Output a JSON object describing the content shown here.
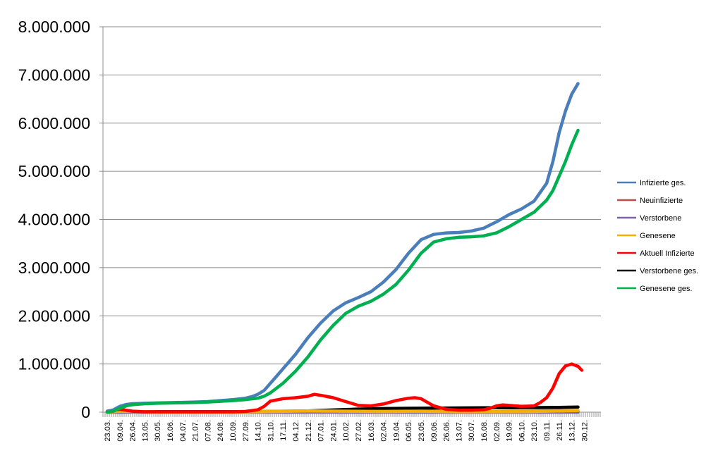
{
  "chart_data": {
    "type": "line",
    "title": "",
    "xlabel": "",
    "ylabel": "",
    "ylim": [
      0,
      8000000
    ],
    "y_ticks": [
      0,
      1000000,
      2000000,
      3000000,
      4000000,
      5000000,
      6000000,
      7000000,
      8000000
    ],
    "y_tick_labels": [
      "0",
      "1.000.000",
      "2.000.000",
      "3.000.000",
      "4.000.000",
      "5.000.000",
      "6.000.000",
      "7.000.000",
      "8.000.000"
    ],
    "grid": "horizontal",
    "legend_position": "right",
    "x_tick_labels": [
      "23.03.",
      "09.04.",
      "26.04.",
      "13.05.",
      "30.05.",
      "16.06.",
      "04.07.",
      "21.07.",
      "07.08.",
      "24.08.",
      "10.09.",
      "27.09.",
      "14.10.",
      "31.10.",
      "17.11.",
      "04.12.",
      "21.12.",
      "07.01.",
      "24.01.",
      "10.02.",
      "27.02.",
      "16.03.",
      "02.04.",
      "19.04.",
      "06.05.",
      "23.05.",
      "09.06.",
      "26.06.",
      "13.07.",
      "30.07.",
      "16.08.",
      "02.09.",
      "19.09.",
      "06.10.",
      "23.10.",
      "09.11.",
      "26.11.",
      "13.12.",
      "30.12."
    ],
    "x_range": [
      0,
      38.1
    ],
    "series": [
      {
        "name": "Infizierte ges.",
        "color": "#4a7ebb",
        "points": [
          [
            0,
            10000
          ],
          [
            0.5,
            50000
          ],
          [
            1,
            120000
          ],
          [
            1.5,
            160000
          ],
          [
            2,
            175000
          ],
          [
            3,
            185000
          ],
          [
            4,
            192000
          ],
          [
            5,
            198000
          ],
          [
            6,
            203000
          ],
          [
            7,
            210000
          ],
          [
            8,
            220000
          ],
          [
            9,
            240000
          ],
          [
            10,
            260000
          ],
          [
            11,
            290000
          ],
          [
            11.5,
            320000
          ],
          [
            12,
            370000
          ],
          [
            12.5,
            450000
          ],
          [
            13,
            600000
          ],
          [
            14,
            900000
          ],
          [
            15,
            1200000
          ],
          [
            16,
            1550000
          ],
          [
            17,
            1850000
          ],
          [
            18,
            2100000
          ],
          [
            19,
            2270000
          ],
          [
            20,
            2380000
          ],
          [
            21,
            2500000
          ],
          [
            22,
            2700000
          ],
          [
            23,
            2960000
          ],
          [
            24,
            3300000
          ],
          [
            25,
            3580000
          ],
          [
            26,
            3690000
          ],
          [
            27,
            3720000
          ],
          [
            28,
            3730000
          ],
          [
            29,
            3760000
          ],
          [
            30,
            3820000
          ],
          [
            31,
            3950000
          ],
          [
            32,
            4100000
          ],
          [
            33,
            4220000
          ],
          [
            34,
            4380000
          ],
          [
            35,
            4750000
          ],
          [
            35.5,
            5200000
          ],
          [
            36,
            5800000
          ],
          [
            36.5,
            6250000
          ],
          [
            37,
            6600000
          ],
          [
            37.5,
            6820000
          ]
        ]
      },
      {
        "name": "Neuinfizierte",
        "color": "#be4b48",
        "points": [
          [
            0,
            20000
          ],
          [
            0.5,
            45000
          ],
          [
            1,
            50000
          ],
          [
            1.5,
            30000
          ],
          [
            2,
            15000
          ],
          [
            4,
            5000
          ],
          [
            10,
            5000
          ],
          [
            12,
            15000
          ],
          [
            14,
            20000
          ],
          [
            16,
            25000
          ],
          [
            18,
            12000
          ],
          [
            20,
            8000
          ],
          [
            22,
            15000
          ],
          [
            24,
            20000
          ],
          [
            26,
            8000
          ],
          [
            28,
            5000
          ],
          [
            30,
            8000
          ],
          [
            32,
            15000
          ],
          [
            34,
            20000
          ],
          [
            36,
            30000
          ],
          [
            37.5,
            25000
          ]
        ]
      },
      {
        "name": "Verstorbene",
        "color": "#7d60a0",
        "points": [
          [
            0,
            0
          ],
          [
            10,
            0
          ],
          [
            14,
            500
          ],
          [
            17,
            1000
          ],
          [
            20,
            500
          ],
          [
            24,
            700
          ],
          [
            28,
            200
          ],
          [
            32,
            400
          ],
          [
            36,
            800
          ],
          [
            37.5,
            700
          ]
        ]
      },
      {
        "name": "Genesene",
        "color": "#f6b100",
        "points": [
          [
            0,
            0
          ],
          [
            1,
            20000
          ],
          [
            2,
            15000
          ],
          [
            4,
            5000
          ],
          [
            10,
            5000
          ],
          [
            13,
            15000
          ],
          [
            16,
            25000
          ],
          [
            19,
            20000
          ],
          [
            22,
            15000
          ],
          [
            25,
            20000
          ],
          [
            28,
            10000
          ],
          [
            31,
            10000
          ],
          [
            34,
            15000
          ],
          [
            37,
            30000
          ],
          [
            37.5,
            35000
          ]
        ]
      },
      {
        "name": "Aktuell Infizierte",
        "color": "#ff0000",
        "points": [
          [
            0,
            10000
          ],
          [
            0.5,
            40000
          ],
          [
            1,
            60000
          ],
          [
            2,
            20000
          ],
          [
            3,
            8000
          ],
          [
            10,
            8000
          ],
          [
            11,
            15000
          ],
          [
            12,
            50000
          ],
          [
            12.5,
            120000
          ],
          [
            13,
            230000
          ],
          [
            14,
            280000
          ],
          [
            15,
            300000
          ],
          [
            16,
            330000
          ],
          [
            16.5,
            370000
          ],
          [
            17,
            350000
          ],
          [
            18,
            300000
          ],
          [
            19,
            220000
          ],
          [
            20,
            140000
          ],
          [
            21,
            130000
          ],
          [
            22,
            170000
          ],
          [
            23,
            240000
          ],
          [
            24,
            290000
          ],
          [
            24.5,
            300000
          ],
          [
            25,
            280000
          ],
          [
            26,
            130000
          ],
          [
            27,
            60000
          ],
          [
            28,
            40000
          ],
          [
            29,
            40000
          ],
          [
            30,
            50000
          ],
          [
            30.5,
            80000
          ],
          [
            31,
            130000
          ],
          [
            31.5,
            150000
          ],
          [
            32,
            140000
          ],
          [
            33,
            120000
          ],
          [
            34,
            130000
          ],
          [
            34.5,
            200000
          ],
          [
            35,
            300000
          ],
          [
            35.5,
            500000
          ],
          [
            36,
            800000
          ],
          [
            36.5,
            960000
          ],
          [
            37,
            1000000
          ],
          [
            37.5,
            950000
          ],
          [
            37.8,
            870000
          ]
        ]
      },
      {
        "name": "Verstorbene ges.",
        "color": "#000000",
        "points": [
          [
            0,
            500
          ],
          [
            1,
            4000
          ],
          [
            2,
            7000
          ],
          [
            4,
            9000
          ],
          [
            10,
            9500
          ],
          [
            12,
            10000
          ],
          [
            14,
            12000
          ],
          [
            16,
            25000
          ],
          [
            18,
            45000
          ],
          [
            20,
            65000
          ],
          [
            22,
            75000
          ],
          [
            24,
            80000
          ],
          [
            26,
            85000
          ],
          [
            28,
            88000
          ],
          [
            30,
            90000
          ],
          [
            32,
            92000
          ],
          [
            34,
            95000
          ],
          [
            36,
            100000
          ],
          [
            37.5,
            105000
          ]
        ]
      },
      {
        "name": "Genesene ges.",
        "color": "#00b050",
        "points": [
          [
            0,
            0
          ],
          [
            0.5,
            20000
          ],
          [
            1,
            80000
          ],
          [
            1.5,
            130000
          ],
          [
            2,
            155000
          ],
          [
            3,
            175000
          ],
          [
            4,
            185000
          ],
          [
            5,
            190000
          ],
          [
            6,
            195000
          ],
          [
            7,
            200000
          ],
          [
            8,
            210000
          ],
          [
            9,
            225000
          ],
          [
            10,
            240000
          ],
          [
            11,
            260000
          ],
          [
            12,
            290000
          ],
          [
            12.5,
            330000
          ],
          [
            13,
            400000
          ],
          [
            14,
            600000
          ],
          [
            15,
            850000
          ],
          [
            16,
            1150000
          ],
          [
            17,
            1500000
          ],
          [
            18,
            1800000
          ],
          [
            19,
            2050000
          ],
          [
            20,
            2200000
          ],
          [
            21,
            2300000
          ],
          [
            22,
            2450000
          ],
          [
            23,
            2650000
          ],
          [
            24,
            2950000
          ],
          [
            25,
            3300000
          ],
          [
            26,
            3530000
          ],
          [
            27,
            3600000
          ],
          [
            28,
            3630000
          ],
          [
            29,
            3640000
          ],
          [
            30,
            3660000
          ],
          [
            31,
            3720000
          ],
          [
            32,
            3850000
          ],
          [
            33,
            4000000
          ],
          [
            34,
            4150000
          ],
          [
            35,
            4400000
          ],
          [
            35.5,
            4600000
          ],
          [
            36,
            4900000
          ],
          [
            36.5,
            5200000
          ],
          [
            37,
            5550000
          ],
          [
            37.5,
            5850000
          ]
        ]
      }
    ]
  }
}
